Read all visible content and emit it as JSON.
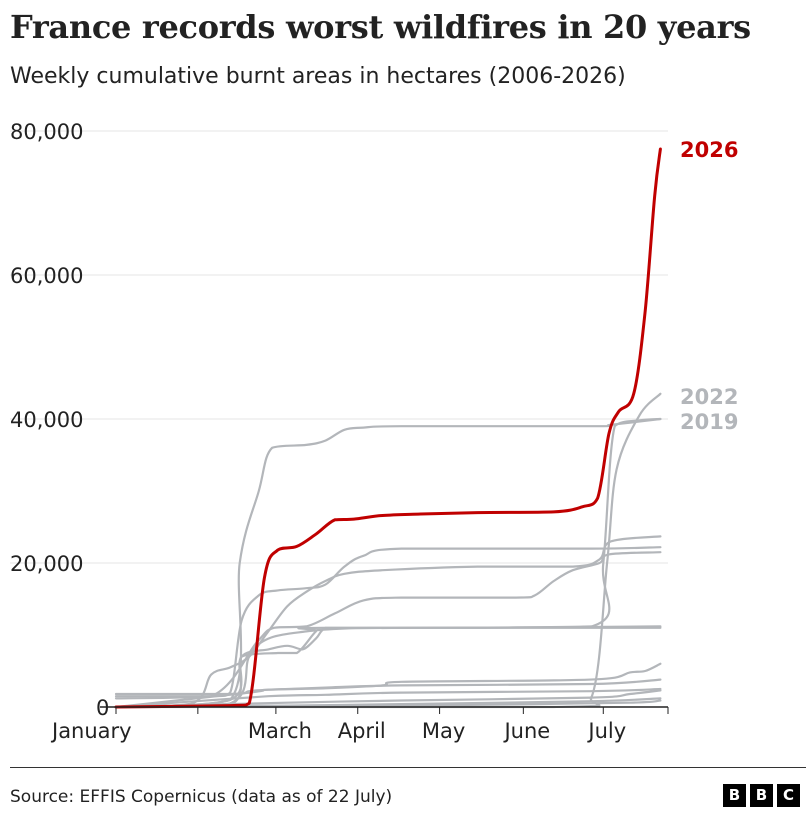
{
  "chart_data": {
    "type": "line",
    "title": "France records worst wildfires in 20 years",
    "subtitle": "Weekly cumulative burnt areas in hectares (2006-2026)",
    "xlabel": "",
    "ylabel": "",
    "x_unit": "week of year",
    "xlim": [
      1,
      30
    ],
    "ylim": [
      0,
      80000
    ],
    "y_ticks": [
      {
        "value": 0,
        "label": "0"
      },
      {
        "value": 20000,
        "label": "20,000"
      },
      {
        "value": 40000,
        "label": "40,000"
      },
      {
        "value": 60000,
        "label": "60,000"
      },
      {
        "value": 80000,
        "label": "80,000"
      }
    ],
    "x_ticks": [
      {
        "week": 1,
        "label": "January"
      },
      {
        "week": 5.3,
        "label": ""
      },
      {
        "week": 9.4,
        "label": "March"
      },
      {
        "week": 13.7,
        "label": "April"
      },
      {
        "week": 18,
        "label": "May"
      },
      {
        "week": 22.4,
        "label": "June"
      },
      {
        "week": 26.6,
        "label": "July"
      },
      {
        "week": 30,
        "label": ""
      }
    ],
    "grid": true,
    "legend": "direct labels at line ends",
    "colors": {
      "highlight": "#c00000",
      "other": "#b3b6ba",
      "axis": "#222222",
      "grid": "#e6e6e6"
    },
    "series": [
      {
        "name": "2026",
        "highlight": true,
        "points": [
          [
            1,
            0
          ],
          [
            7,
            200
          ],
          [
            8,
            500
          ],
          [
            8.8,
            18000
          ],
          [
            9.5,
            21800
          ],
          [
            10.5,
            22300
          ],
          [
            11.5,
            24000
          ],
          [
            12.5,
            26000
          ],
          [
            13.5,
            26100
          ],
          [
            15,
            26600
          ],
          [
            17,
            26800
          ],
          [
            20,
            27000
          ],
          [
            24,
            27100
          ],
          [
            25.5,
            27800
          ],
          [
            26.3,
            29000
          ],
          [
            26.9,
            38000
          ],
          [
            27.4,
            41000
          ],
          [
            28.2,
            43500
          ],
          [
            28.8,
            55000
          ],
          [
            29.3,
            71000
          ],
          [
            29.6,
            77500
          ]
        ]
      },
      {
        "name": "2022",
        "highlight": false,
        "points": [
          [
            1,
            0
          ],
          [
            24,
            0
          ],
          [
            26,
            1500
          ],
          [
            26.8,
            20000
          ],
          [
            27.3,
            33000
          ],
          [
            28.5,
            40500
          ],
          [
            29.6,
            43500
          ]
        ]
      },
      {
        "name": "2019",
        "highlight": false,
        "points": [
          [
            1,
            0
          ],
          [
            7,
            500
          ],
          [
            8,
            7000
          ],
          [
            9,
            9500
          ],
          [
            11,
            10500
          ],
          [
            13,
            10900
          ],
          [
            16,
            11000
          ],
          [
            26,
            11200
          ],
          [
            26.6,
            20000
          ],
          [
            27.2,
            39000
          ],
          [
            28.5,
            39800
          ],
          [
            29.6,
            40000
          ]
        ]
      },
      {
        "name": "",
        "highlight": false,
        "points": [
          [
            1,
            0
          ],
          [
            7,
            1000
          ],
          [
            7.5,
            20000
          ],
          [
            8.5,
            30000
          ],
          [
            9.2,
            36000
          ],
          [
            11,
            36400
          ],
          [
            12,
            37000
          ],
          [
            13,
            38500
          ],
          [
            14,
            38800
          ],
          [
            16,
            39000
          ],
          [
            26,
            39000
          ],
          [
            27,
            39200
          ],
          [
            29.6,
            40000
          ]
        ]
      },
      {
        "name": "",
        "highlight": false,
        "points": [
          [
            1,
            1500
          ],
          [
            6,
            1500
          ],
          [
            7,
            2000
          ],
          [
            7.6,
            12000
          ],
          [
            8.5,
            15500
          ],
          [
            9.5,
            16200
          ],
          [
            11,
            16500
          ],
          [
            12,
            17000
          ],
          [
            13,
            19500
          ],
          [
            14,
            21000
          ],
          [
            16,
            22000
          ],
          [
            26,
            22000
          ],
          [
            29.6,
            22200
          ]
        ]
      },
      {
        "name": "",
        "highlight": false,
        "points": [
          [
            1,
            1200
          ],
          [
            6,
            1500
          ],
          [
            8.4,
            9000
          ],
          [
            9.3,
            11000
          ],
          [
            11,
            11200
          ],
          [
            12.5,
            13000
          ],
          [
            14,
            14800
          ],
          [
            16,
            15200
          ],
          [
            22,
            15200
          ],
          [
            23,
            15500
          ],
          [
            24,
            17500
          ],
          [
            25,
            19000
          ],
          [
            26.4,
            20000
          ],
          [
            26.9,
            21200
          ],
          [
            29.6,
            21500
          ]
        ]
      },
      {
        "name": "",
        "highlight": false,
        "points": [
          [
            1,
            0
          ],
          [
            5,
            500
          ],
          [
            6,
            4500
          ],
          [
            7,
            5500
          ],
          [
            8,
            7000
          ],
          [
            9,
            10500
          ],
          [
            10,
            14000
          ],
          [
            11,
            16000
          ],
          [
            12,
            17500
          ],
          [
            13,
            18500
          ],
          [
            15,
            19000
          ],
          [
            20,
            19500
          ],
          [
            25,
            19500
          ],
          [
            26.4,
            20500
          ],
          [
            27,
            23000
          ],
          [
            29.6,
            23700
          ]
        ]
      },
      {
        "name": "",
        "highlight": false,
        "points": [
          [
            1,
            0
          ],
          [
            7,
            1000
          ],
          [
            7.6,
            7000
          ],
          [
            9,
            8000
          ],
          [
            10,
            8500
          ],
          [
            10.8,
            8000
          ],
          [
            11.5,
            9500
          ],
          [
            12,
            11000
          ],
          [
            13,
            11000
          ],
          [
            15,
            11000
          ],
          [
            20,
            11000
          ],
          [
            29.6,
            11200
          ]
        ]
      },
      {
        "name": "",
        "highlight": false,
        "points": [
          [
            1,
            0
          ],
          [
            7,
            300
          ],
          [
            7.6,
            7000
          ],
          [
            9.5,
            7500
          ],
          [
            10.5,
            7500
          ],
          [
            11.5,
            10500
          ],
          [
            12,
            11000
          ],
          [
            29.6,
            11000
          ]
        ]
      },
      {
        "name": "",
        "highlight": false,
        "points": [
          [
            1,
            0
          ],
          [
            8,
            2000
          ],
          [
            9,
            2400
          ],
          [
            12,
            2600
          ],
          [
            15,
            3000
          ],
          [
            16,
            3500
          ],
          [
            24,
            3700
          ],
          [
            27,
            4000
          ],
          [
            28,
            4800
          ],
          [
            28.8,
            5000
          ],
          [
            29.6,
            6000
          ]
        ]
      },
      {
        "name": "",
        "highlight": false,
        "points": [
          [
            1,
            1800
          ],
          [
            7,
            1800
          ],
          [
            8,
            2200
          ],
          [
            9,
            2400
          ],
          [
            12,
            2700
          ],
          [
            16,
            3000
          ],
          [
            26,
            3200
          ],
          [
            29.6,
            3800
          ]
        ]
      },
      {
        "name": "",
        "highlight": false,
        "points": [
          [
            1,
            0
          ],
          [
            9,
            1500
          ],
          [
            12,
            1700
          ],
          [
            16,
            2000
          ],
          [
            26,
            2200
          ],
          [
            29.6,
            2500
          ]
        ]
      },
      {
        "name": "",
        "highlight": false,
        "points": [
          [
            1,
            0
          ],
          [
            10,
            600
          ],
          [
            16,
            900
          ],
          [
            26,
            1300
          ],
          [
            28,
            1800
          ],
          [
            29.6,
            2300
          ]
        ]
      },
      {
        "name": "",
        "highlight": false,
        "points": [
          [
            1,
            0
          ],
          [
            10,
            200
          ],
          [
            16,
            400
          ],
          [
            26,
            800
          ],
          [
            29.6,
            1200
          ]
        ]
      },
      {
        "name": "",
        "highlight": false,
        "points": [
          [
            1,
            0
          ],
          [
            12,
            100
          ],
          [
            20,
            300
          ],
          [
            28,
            600
          ],
          [
            29.6,
            900
          ]
        ]
      }
    ]
  },
  "footer": {
    "source": "Source: EFFIS Copernicus (data as of 22 July)",
    "logo": [
      "B",
      "B",
      "C"
    ]
  }
}
